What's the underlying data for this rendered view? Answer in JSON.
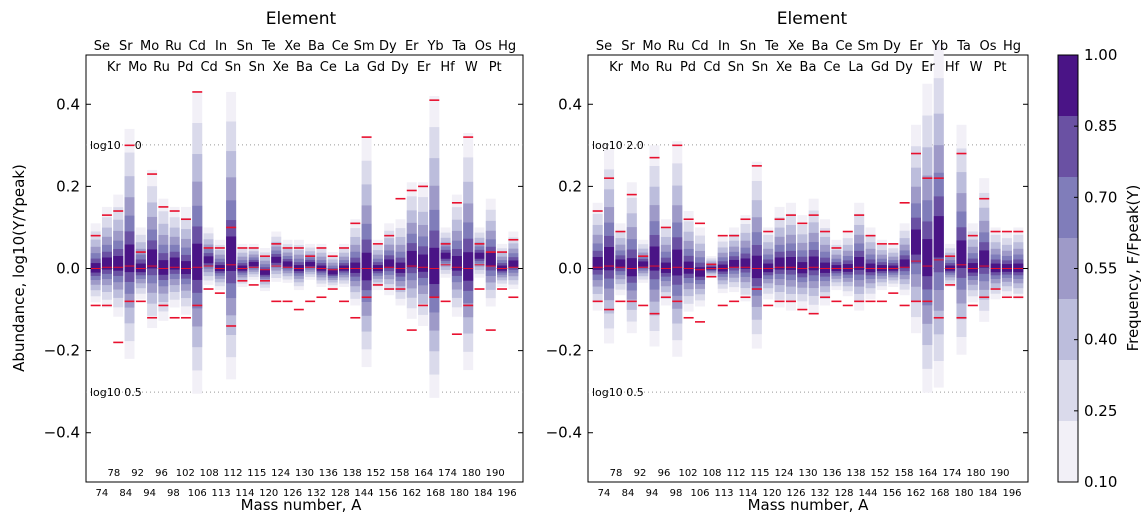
{
  "shared": {
    "top_title": "Element",
    "xlabel": "Mass number, A",
    "ylabel": "Abundance, log10(Y/Ypeak)",
    "colorbar_label": "Frequency, F/Fpeak(Y)",
    "colorbar_ticks": [
      "0.10",
      "0.25",
      "0.40",
      "0.55",
      "0.70",
      "0.85",
      "1.00"
    ],
    "level_colors": [
      "#f2f0f7",
      "#dadaeb",
      "#bcbddc",
      "#9e9ac8",
      "#807dba",
      "#6a51a3",
      "#4a1486"
    ],
    "median_color": "#e8102e",
    "ref_lines": [
      "log10 2.0",
      "log10 0.5"
    ],
    "y_ticks": [
      "-0.4",
      "-0.2",
      "0.0",
      "0.2",
      "0.4"
    ],
    "ylim": [
      -0.52,
      0.52
    ],
    "xcount": 38,
    "top_labels_row1": [
      "Se",
      "Sr",
      "Mo",
      "Ru",
      "Cd",
      "In",
      "Sn",
      "Te",
      "Xe",
      "Ba",
      "Ce",
      "Sm",
      "Dy",
      "Er",
      "Yb",
      "Ta",
      "Os",
      "Hg"
    ],
    "top_labels_row2": [
      "Kr",
      "Mo",
      "Ru",
      "Pd",
      "Cd",
      "Sn",
      "Sn",
      "Xe",
      "Ba",
      "Ce",
      "La",
      "Gd",
      "Dy",
      "Er",
      "Hf",
      "W",
      "Pt"
    ],
    "bottom_labels_row1": [
      "78",
      "92",
      "96",
      "102",
      "108",
      "112",
      "115",
      "124",
      "130",
      "136",
      "138",
      "152",
      "158",
      "164",
      "174",
      "180",
      "190"
    ],
    "bottom_labels_row2": [
      "74",
      "84",
      "94",
      "98",
      "106",
      "113",
      "114",
      "120",
      "126",
      "132",
      "128",
      "144",
      "156",
      "162",
      "168",
      "180",
      "184",
      "196"
    ]
  },
  "chart_data": [
    {
      "type": "heatmap",
      "panel": "left",
      "description": "Stacked frequency bands per isotope; ranges are ± offsets for levels 0.10,0.25,0.40,0.55,0.70,0.85",
      "centers": [
        0.0,
        0.01,
        0.01,
        0.02,
        0.0,
        0.02,
        0.0,
        0.01,
        0.0,
        0.01,
        0.02,
        0.0,
        0.03,
        0.0,
        0.01,
        -0.01,
        0.02,
        0.01,
        0.0,
        0.01,
        0.0,
        -0.01,
        0.0,
        0.0,
        0.0,
        0.0,
        0.01,
        0.0,
        0.02,
        0.01,
        0.0,
        0.03,
        0.01,
        0.0,
        0.03,
        0.02,
        0.0,
        0.01
      ],
      "spreads": [
        0.11,
        0.14,
        0.17,
        0.32,
        0.1,
        0.22,
        0.17,
        0.14,
        0.15,
        0.42,
        0.08,
        0.07,
        0.4,
        0.06,
        0.05,
        0.06,
        0.07,
        0.06,
        0.07,
        0.05,
        0.06,
        0.05,
        0.06,
        0.12,
        0.32,
        0.07,
        0.1,
        0.12,
        0.19,
        0.2,
        0.42,
        0.07,
        0.17,
        0.33,
        0.07,
        0.15,
        0.06,
        0.08
      ],
      "medians": [
        0.08,
        0.13,
        0.14,
        0.3,
        0.04,
        0.23,
        0.15,
        0.14,
        0.12,
        0.43,
        0.05,
        0.05,
        0.1,
        0.05,
        0.05,
        0.03,
        0.06,
        0.05,
        0.05,
        0.03,
        0.05,
        0.03,
        0.05,
        0.11,
        0.32,
        0.06,
        0.08,
        0.17,
        0.19,
        0.2,
        0.41,
        0.06,
        0.16,
        0.32,
        0.06,
        0.04,
        0.04,
        0.07
      ],
      "medians_low": [
        -0.09,
        -0.09,
        -0.18,
        -0.08,
        -0.08,
        -0.12,
        -0.09,
        -0.12,
        -0.12,
        -0.09,
        -0.05,
        -0.06,
        -0.14,
        -0.03,
        -0.04,
        -0.03,
        -0.08,
        -0.08,
        -0.1,
        -0.08,
        -0.07,
        -0.05,
        -0.08,
        -0.12,
        -0.07,
        -0.04,
        -0.05,
        -0.05,
        -0.15,
        -0.09,
        -0.07,
        -0.08,
        -0.16,
        -0.09,
        -0.05,
        -0.15,
        -0.05,
        -0.07
      ]
    },
    {
      "type": "heatmap",
      "panel": "right",
      "description": "Stacked frequency bands per isotope; ranges are ± offsets for levels 0.10,0.25,0.40,0.55,0.70,0.85",
      "centers": [
        0.01,
        0.02,
        0.01,
        0.0,
        0.01,
        0.02,
        0.0,
        0.01,
        0.0,
        -0.01,
        0.0,
        0.0,
        0.01,
        0.01,
        0.0,
        0.0,
        0.01,
        0.01,
        0.0,
        0.01,
        0.0,
        0.0,
        0.0,
        0.01,
        0.0,
        0.0,
        0.0,
        0.01,
        0.06,
        0.02,
        0.07,
        0.0,
        0.03,
        0.0,
        0.02,
        0.0,
        0.0,
        0.0
      ],
      "spreads": [
        0.15,
        0.27,
        0.1,
        0.21,
        0.06,
        0.28,
        0.12,
        0.3,
        0.14,
        0.11,
        0.03,
        0.08,
        0.09,
        0.12,
        0.26,
        0.1,
        0.14,
        0.15,
        0.13,
        0.16,
        0.12,
        0.07,
        0.09,
        0.15,
        0.1,
        0.07,
        0.06,
        0.1,
        0.29,
        0.43,
        0.48,
        0.06,
        0.32,
        0.11,
        0.2,
        0.1,
        0.09,
        0.1
      ],
      "medians": [
        0.14,
        0.22,
        0.09,
        0.18,
        0.03,
        0.27,
        0.1,
        0.3,
        0.12,
        0.11,
        0.01,
        0.08,
        0.08,
        0.12,
        0.25,
        0.09,
        0.12,
        0.13,
        0.11,
        0.13,
        0.09,
        0.05,
        0.09,
        0.13,
        0.08,
        0.06,
        0.06,
        0.16,
        0.28,
        0.22,
        0.22,
        0.03,
        0.28,
        0.08,
        0.17,
        0.09,
        0.09,
        0.09
      ],
      "medians_low": [
        -0.08,
        -0.1,
        -0.08,
        -0.08,
        -0.09,
        -0.11,
        -0.07,
        -0.08,
        -0.12,
        -0.13,
        -0.02,
        -0.09,
        -0.08,
        -0.07,
        -0.05,
        -0.09,
        -0.08,
        -0.08,
        -0.1,
        -0.11,
        -0.07,
        -0.08,
        -0.09,
        -0.08,
        -0.08,
        -0.08,
        -0.06,
        -0.09,
        -0.08,
        -0.08,
        -0.12,
        -0.04,
        -0.12,
        -0.09,
        -0.07,
        -0.05,
        -0.07,
        -0.07
      ]
    }
  ]
}
